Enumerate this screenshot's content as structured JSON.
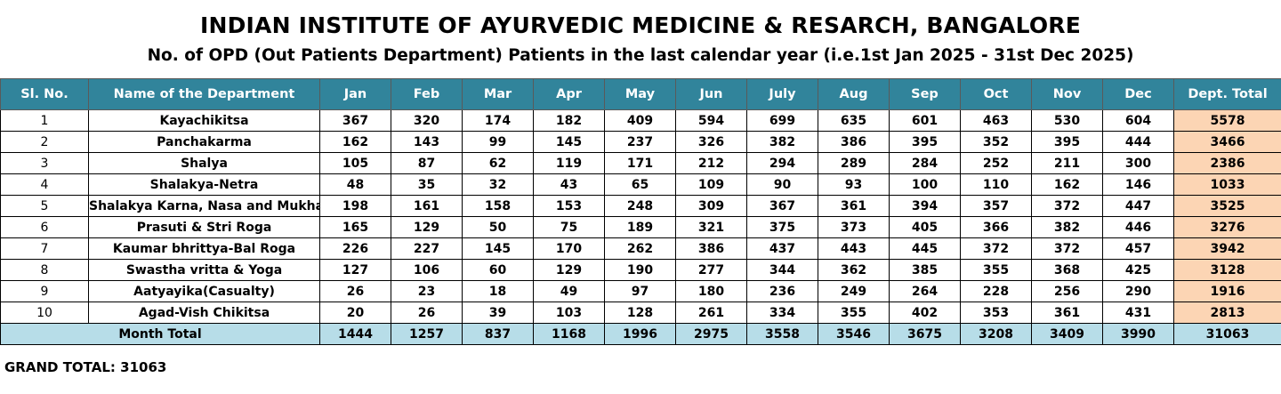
{
  "title": "INDIAN INSTITUTE OF AYURVEDIC MEDICINE & RESARCH, BANGALORE",
  "subtitle": "No. of OPD (Out Patients Department) Patients in the last calendar year (i.e.1st Jan 2025 - 31st Dec 2025)",
  "headers": [
    "Sl. No.",
    "Name of the Department",
    "Jan",
    "Feb",
    "Mar",
    "Apr",
    "May",
    "Jun",
    "July",
    "Aug",
    "Sep",
    "Oct",
    "Nov",
    "Dec",
    "Dept. Total"
  ],
  "rows": [
    {
      "sl": "1",
      "dept": "Kayachikitsa",
      "values": [
        "367",
        "320",
        "174",
        "182",
        "409",
        "594",
        "699",
        "635",
        "601",
        "463",
        "530",
        "604"
      ],
      "total": "5578"
    },
    {
      "sl": "2",
      "dept": "Panchakarma",
      "values": [
        "162",
        "143",
        "99",
        "145",
        "237",
        "326",
        "382",
        "386",
        "395",
        "352",
        "395",
        "444"
      ],
      "total": "3466"
    },
    {
      "sl": "3",
      "dept": "Shalya",
      "values": [
        "105",
        "87",
        "62",
        "119",
        "171",
        "212",
        "294",
        "289",
        "284",
        "252",
        "211",
        "300"
      ],
      "total": "2386"
    },
    {
      "sl": "4",
      "dept": "Shalakya-Netra",
      "values": [
        "48",
        "35",
        "32",
        "43",
        "65",
        "109",
        "90",
        "93",
        "100",
        "110",
        "162",
        "146"
      ],
      "total": "1033"
    },
    {
      "sl": "5",
      "dept": "Shalakya Karna, Nasa and Mukha",
      "values": [
        "198",
        "161",
        "158",
        "153",
        "248",
        "309",
        "367",
        "361",
        "394",
        "357",
        "372",
        "447"
      ],
      "total": "3525"
    },
    {
      "sl": "6",
      "dept": "Prasuti & Stri Roga",
      "values": [
        "165",
        "129",
        "50",
        "75",
        "189",
        "321",
        "375",
        "373",
        "405",
        "366",
        "382",
        "446"
      ],
      "total": "3276"
    },
    {
      "sl": "7",
      "dept": "Kaumar bhrittya-Bal Roga",
      "values": [
        "226",
        "227",
        "145",
        "170",
        "262",
        "386",
        "437",
        "443",
        "445",
        "372",
        "372",
        "457"
      ],
      "total": "3942"
    },
    {
      "sl": "8",
      "dept": "Swastha vritta & Yoga",
      "values": [
        "127",
        "106",
        "60",
        "129",
        "190",
        "277",
        "344",
        "362",
        "385",
        "355",
        "368",
        "425"
      ],
      "total": "3128"
    },
    {
      "sl": "9",
      "dept": "Aatyayika(Casualty)",
      "values": [
        "26",
        "23",
        "18",
        "49",
        "97",
        "180",
        "236",
        "249",
        "264",
        "228",
        "256",
        "290"
      ],
      "total": "1916"
    },
    {
      "sl": "10",
      "dept": "Agad-Vish Chikitsa",
      "values": [
        "20",
        "26",
        "39",
        "103",
        "128",
        "261",
        "334",
        "355",
        "402",
        "353",
        "361",
        "431"
      ],
      "total": "2813"
    }
  ],
  "month_total": {
    "label": "Month Total",
    "values": [
      "1444",
      "1257",
      "837",
      "1168",
      "1996",
      "2975",
      "3558",
      "3546",
      "3675",
      "3208",
      "3409",
      "3990"
    ],
    "total": "31063"
  },
  "grand_total": "GRAND TOTAL: 31063",
  "colors": {
    "header_bg": "#31849b",
    "header_text": "#ffffff",
    "dept_total_bg": "#fcd5b4",
    "month_total_bg": "#b7dde8"
  }
}
